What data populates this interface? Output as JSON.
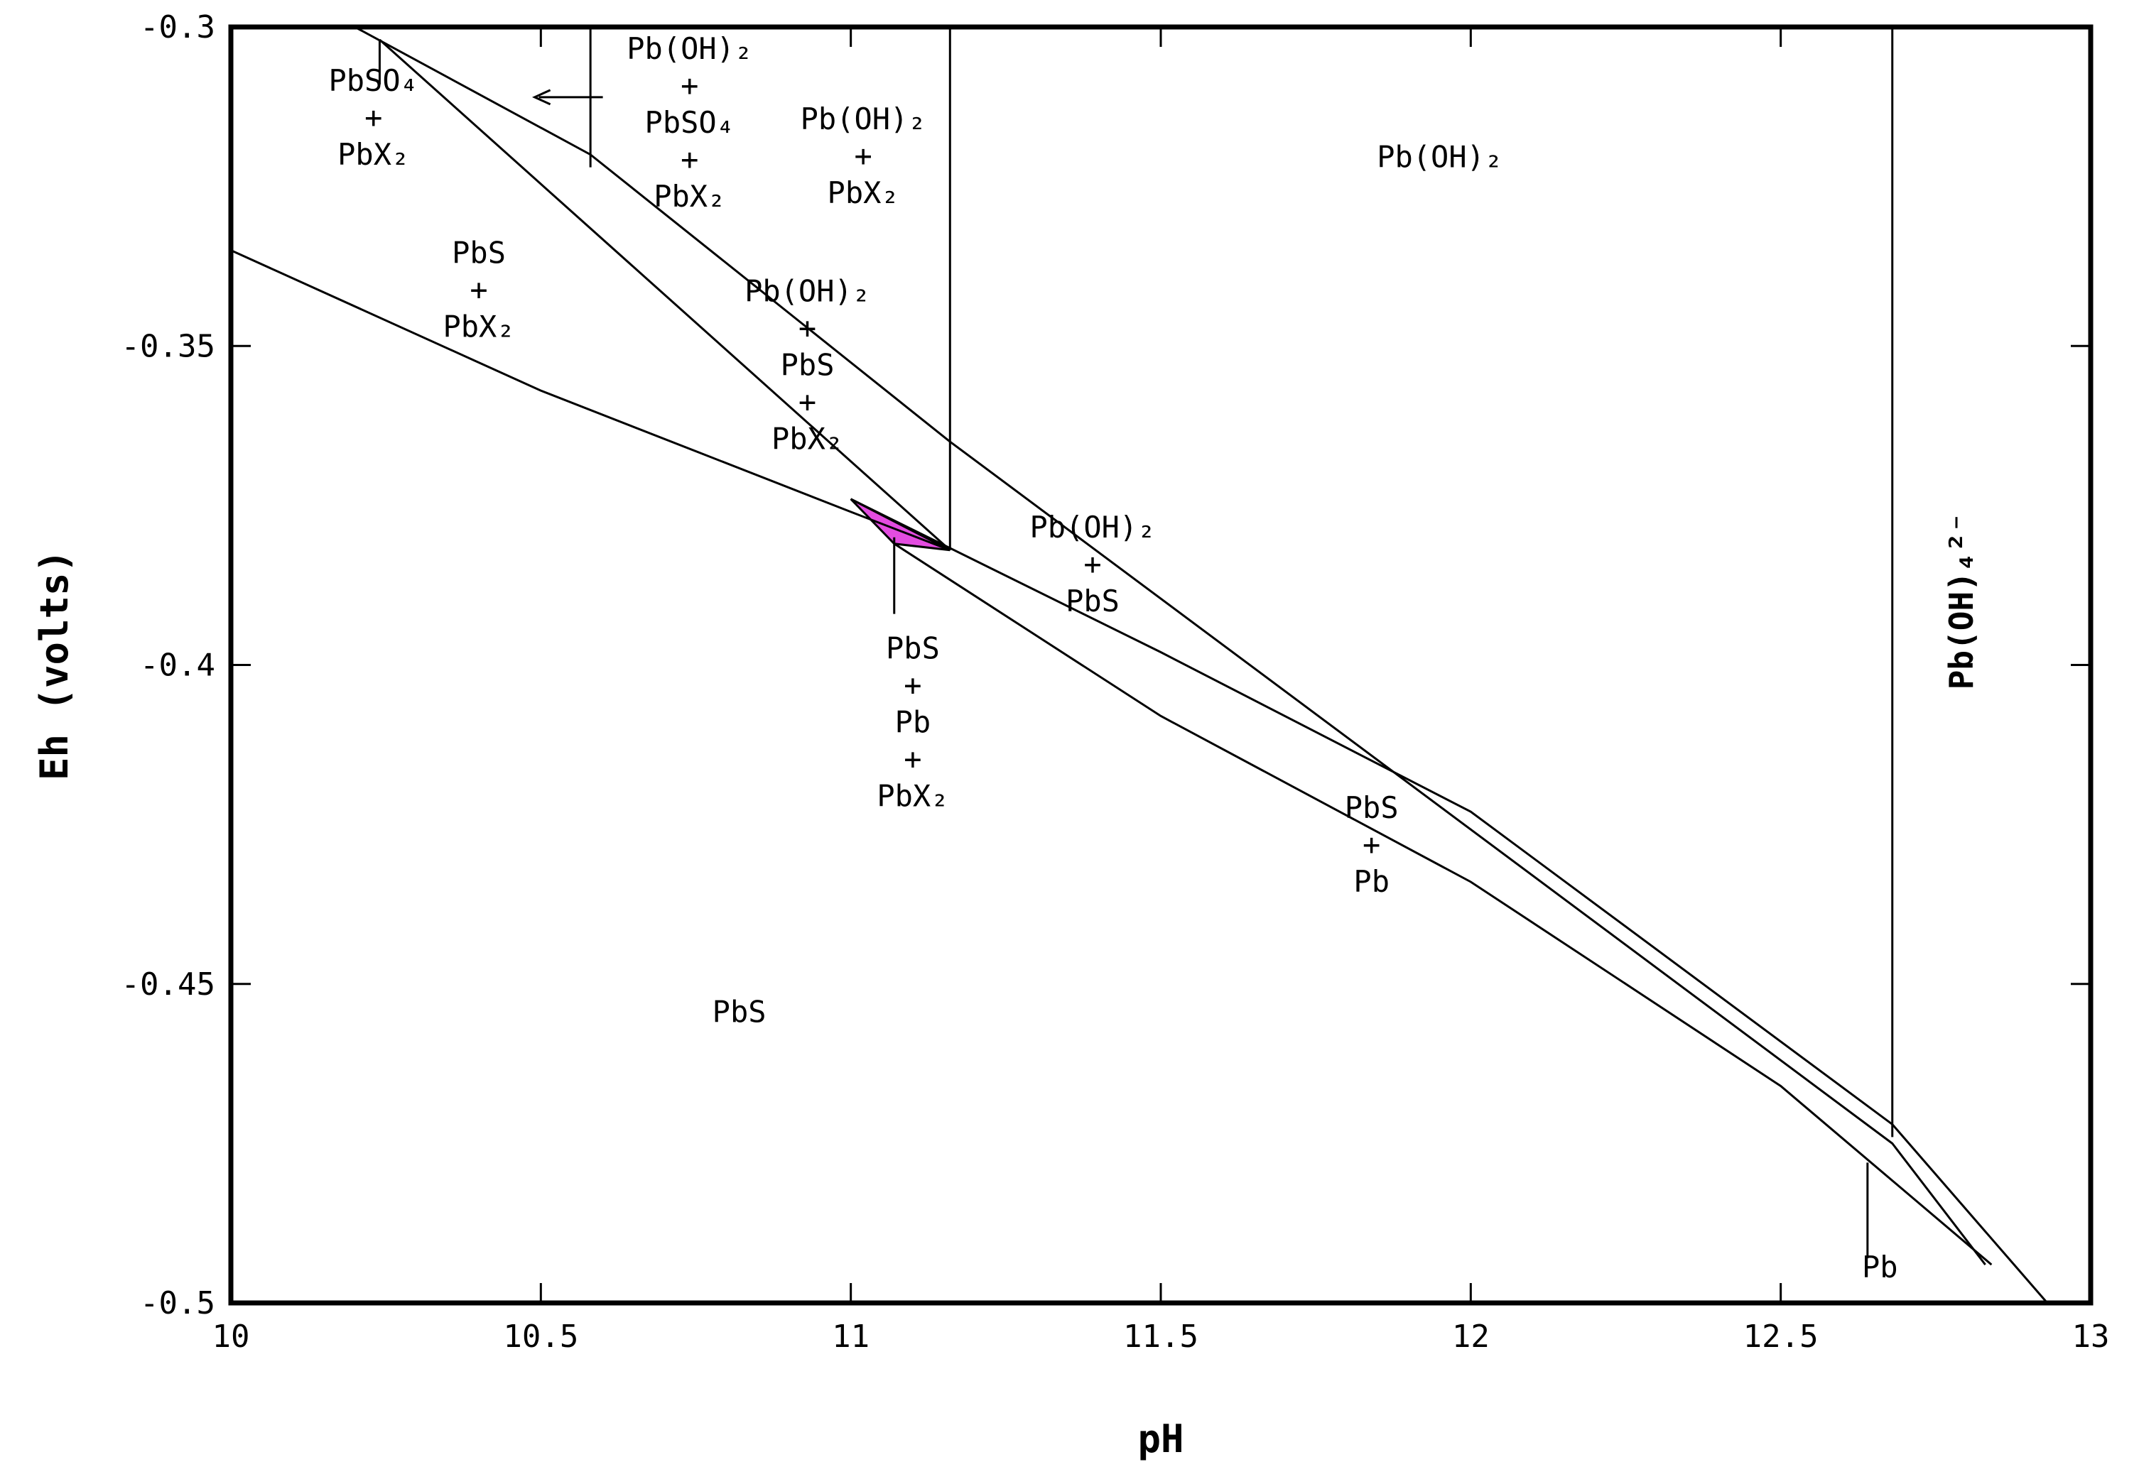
{
  "chart_data": {
    "type": "line",
    "title": "",
    "xlabel": "pH",
    "ylabel": "Eh (volts)",
    "xlim": [
      10,
      13
    ],
    "ylim": [
      -0.5,
      -0.3
    ],
    "grid": false,
    "xticks": [
      10,
      10.5,
      11,
      11.5,
      12,
      12.5,
      13
    ],
    "xtick_labels": [
      "10",
      "10.5",
      "11",
      "11.5",
      "12",
      "12.5",
      "13"
    ],
    "yticks": [
      -0.3,
      -0.35,
      -0.4,
      -0.45,
      -0.5
    ],
    "ytick_labels": [
      "-0.3",
      "-0.35",
      "-0.4",
      "-0.45",
      "-0.5"
    ],
    "boundaries": [
      {
        "x": [
          10.2,
          10.58,
          11.16,
          12.68,
          12.83
        ],
        "y": [
          -0.3,
          -0.32,
          -0.365,
          -0.475,
          -0.494
        ]
      },
      {
        "x": [
          10.24,
          11.16
        ],
        "y": [
          -0.302,
          -0.382
        ]
      },
      {
        "x": [
          10.0,
          10.5,
          11.0,
          11.16
        ],
        "y": [
          -0.335,
          -0.357,
          -0.376,
          -0.382
        ]
      },
      {
        "x": [
          11.0,
          11.5,
          12.0,
          12.68,
          12.93
        ],
        "y": [
          -0.374,
          -0.398,
          -0.423,
          -0.472,
          -0.5
        ]
      },
      {
        "x": [
          11.07,
          11.5,
          12.0,
          12.5,
          12.84
        ],
        "y": [
          -0.381,
          -0.408,
          -0.434,
          -0.466,
          -0.494
        ]
      },
      {
        "x": [
          10.58,
          10.58
        ],
        "y": [
          -0.3,
          -0.322
        ]
      },
      {
        "x": [
          11.16,
          11.16
        ],
        "y": [
          -0.3,
          -0.382
        ]
      },
      {
        "x": [
          12.68,
          12.68
        ],
        "y": [
          -0.3,
          -0.474
        ]
      },
      {
        "x": [
          11.07,
          11.07
        ],
        "y": [
          -0.38,
          -0.392
        ]
      },
      {
        "x": [
          12.64,
          12.64
        ],
        "y": [
          -0.478,
          -0.493
        ]
      },
      {
        "x": [
          10.24,
          10.24
        ],
        "y": [
          -0.302,
          -0.309
        ]
      }
    ],
    "highlight_region": {
      "x": [
        11.0,
        11.16,
        11.07
      ],
      "y": [
        -0.374,
        -0.382,
        -0.381
      ],
      "color": "#e34ce0"
    },
    "arrow": {
      "from": [
        10.6,
        -0.311
      ],
      "to": [
        10.49,
        -0.311
      ]
    },
    "region_labels": [
      {
        "lines": [
          "PbSO₄",
          "+",
          "PbX₂"
        ],
        "x": 10.23,
        "y": -0.31
      },
      {
        "lines": [
          "Pb(OH)₂",
          "+",
          "PbSO₄",
          "+",
          "PbX₂"
        ],
        "x": 10.74,
        "y": -0.305
      },
      {
        "lines": [
          "Pb(OH)₂",
          "+",
          "PbX₂"
        ],
        "x": 11.02,
        "y": -0.316
      },
      {
        "lines": [
          "PbS",
          "+",
          "PbX₂"
        ],
        "x": 10.4,
        "y": -0.337
      },
      {
        "lines": [
          "Pb(OH)₂",
          "+",
          "PbS",
          "+",
          "PbX₂"
        ],
        "x": 10.93,
        "y": -0.343
      },
      {
        "lines": [
          "Pb(OH)₂",
          "+",
          "PbS"
        ],
        "x": 11.39,
        "y": -0.38
      },
      {
        "lines": [
          "PbS",
          "+",
          "Pb",
          "+",
          "PbX₂"
        ],
        "x": 11.1,
        "y": -0.399
      },
      {
        "lines": [
          "PbS",
          "+",
          "Pb"
        ],
        "x": 11.84,
        "y": -0.424
      },
      {
        "lines": [
          "Pb(OH)₂"
        ],
        "x": 11.95,
        "y": -0.322
      },
      {
        "lines": [
          "PbS"
        ],
        "x": 10.82,
        "y": -0.456
      },
      {
        "lines": [
          "Pb"
        ],
        "x": 12.66,
        "y": -0.496
      },
      {
        "lines": [
          "Pb(OH)₄²⁻"
        ],
        "x": 12.81,
        "y": -0.39,
        "rotated": true
      }
    ]
  }
}
